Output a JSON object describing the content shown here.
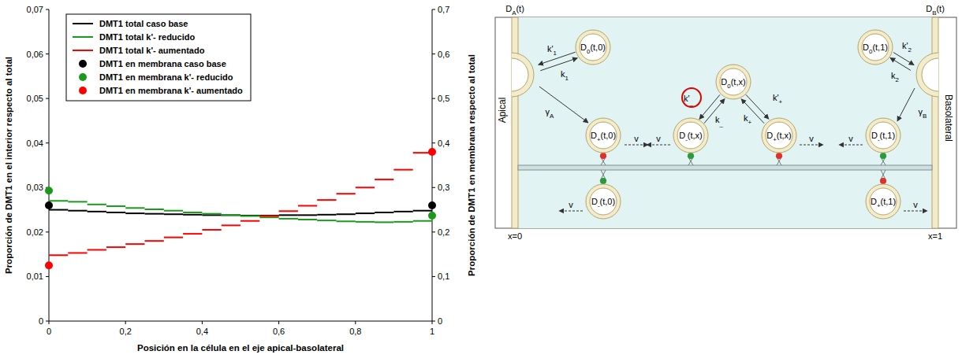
{
  "chart_data": {
    "type": "line",
    "x_label": "Posición en la célula en el eje apical-basolateral",
    "y_label": "Proporción de DMT1 en el interior respecto al total",
    "y2_label": "Proporción de DMT1 en membrana respecto al total",
    "x": [
      0,
      0.05,
      0.1,
      0.15,
      0.2,
      0.25,
      0.3,
      0.35,
      0.4,
      0.45,
      0.5,
      0.55,
      0.6,
      0.65,
      0.7,
      0.75,
      0.8,
      0.85,
      0.9,
      0.95
    ],
    "xlim": [
      0,
      1
    ],
    "xticks": [
      0,
      {
        "value": 0.2,
        "label": "0,2"
      },
      {
        "value": 0.4,
        "label": "0,4"
      },
      {
        "value": 0.6,
        "label": "0,6"
      },
      {
        "value": 0.8,
        "label": "0,8"
      },
      1
    ],
    "ylim": [
      0,
      0.07
    ],
    "yticks": [
      0,
      {
        "value": 0.01,
        "label": "0,01"
      },
      {
        "value": 0.02,
        "label": "0,02"
      },
      {
        "value": 0.03,
        "label": "0,03"
      },
      {
        "value": 0.04,
        "label": "0,04"
      },
      {
        "value": 0.05,
        "label": "0,05"
      },
      {
        "value": 0.06,
        "label": "0,06"
      },
      {
        "value": 0.07,
        "label": "0,07"
      }
    ],
    "y2lim": [
      0,
      0.7
    ],
    "y2ticks": [
      0,
      {
        "value": 0.1,
        "label": "0,1"
      },
      {
        "value": 0.2,
        "label": "0,2"
      },
      {
        "value": 0.3,
        "label": "0,3"
      },
      {
        "value": 0.4,
        "label": "0,4"
      },
      {
        "value": 0.5,
        "label": "0,5"
      },
      {
        "value": 0.6,
        "label": "0,6"
      },
      {
        "value": 0.7,
        "label": "0,7"
      }
    ],
    "grid": false,
    "legend": "top-left",
    "series": [
      {
        "name": "DMT1 total caso base",
        "type": "line",
        "line_style": "step",
        "color": "#000000",
        "values": [
          0.025,
          0.0248,
          0.0246,
          0.0244,
          0.0242,
          0.0241,
          0.024,
          0.0239,
          0.0238,
          0.0238,
          0.0237,
          0.0237,
          0.0238,
          0.0238,
          0.0239,
          0.024,
          0.0242,
          0.0244,
          0.0246,
          0.0248
        ]
      },
      {
        "name": "DMT1 total k'- reducido",
        "type": "line",
        "line_style": "step",
        "color": "#1a9a1a",
        "values": [
          0.027,
          0.0268,
          0.0262,
          0.0258,
          0.0254,
          0.0251,
          0.0248,
          0.0244,
          0.0241,
          0.0238,
          0.0236,
          0.0233,
          0.023,
          0.0228,
          0.0226,
          0.0224,
          0.0223,
          0.0222,
          0.0223,
          0.0225
        ]
      },
      {
        "name": "DMT1 total k'- aumentado",
        "type": "line",
        "line_style": "step",
        "color": "#ff0000",
        "values": [
          0.0148,
          0.0153,
          0.016,
          0.0166,
          0.0173,
          0.018,
          0.0188,
          0.0196,
          0.0205,
          0.0215,
          0.0225,
          0.0236,
          0.0247,
          0.0259,
          0.0272,
          0.0286,
          0.03,
          0.0318,
          0.034,
          0.0378
        ]
      },
      {
        "name": "DMT1 en membrana caso base",
        "type": "scatter",
        "marker": "circle",
        "axis": "y2",
        "color": "#000000",
        "x": [
          0,
          1
        ],
        "values": [
          0.26,
          0.26
        ]
      },
      {
        "name": "DMT1 en membrana k'- reducido",
        "type": "scatter",
        "marker": "circle",
        "axis": "y2",
        "color": "#1a9a1a",
        "x": [
          0,
          1
        ],
        "values": [
          0.293,
          0.237
        ]
      },
      {
        "name": "DMT1 en membrana k'-  aumentado",
        "type": "scatter",
        "marker": "circle",
        "axis": "y2",
        "color": "#ff0000",
        "x": [
          0,
          1
        ],
        "values": [
          0.125,
          0.38
        ]
      }
    ]
  },
  "diagram": {
    "boundaries": [
      {
        "base": "D",
        "sub": "A",
        "rest": "(t)"
      },
      {
        "base": "D",
        "sub": "B",
        "rest": "(t)"
      }
    ],
    "membranes": [
      "Apical",
      "Basolateral"
    ],
    "positions": [
      "x=0",
      "x=1"
    ],
    "vesicles": [
      {
        "base": "D",
        "sub": "0",
        "rest": "(t,0)"
      },
      {
        "base": "D",
        "sub": "+",
        "rest": "(t,0)"
      },
      {
        "base": "D",
        "sub": "-",
        "rest": "(t,0)"
      },
      {
        "base": "D",
        "sub": "0",
        "rest": "(t,x)"
      },
      {
        "base": "D",
        "sub": "-",
        "rest": "(t,x)"
      },
      {
        "base": "D",
        "sub": "+",
        "rest": "(t,x)"
      },
      {
        "base": "D",
        "sub": "0",
        "rest": "(t,1)"
      },
      {
        "base": "D",
        "sub": "-",
        "rest": "(t,1)"
      },
      {
        "base": "D",
        "sub": "+",
        "rest": "(t,1)"
      }
    ],
    "rates": [
      {
        "base": "k'",
        "sub": "1"
      },
      {
        "base": "k",
        "sub": "1"
      },
      {
        "base": "k'",
        "sub": "2"
      },
      {
        "base": "k",
        "sub": "2"
      },
      {
        "base": "k'",
        "sub": "+"
      },
      {
        "base": "k",
        "sub": "+"
      },
      {
        "base": "k'",
        "sub": "_"
      },
      {
        "base": "k",
        "sub": "_"
      },
      {
        "base": "γ",
        "sub": "A"
      },
      {
        "base": "γ",
        "sub": "B"
      }
    ],
    "speed": "v"
  }
}
